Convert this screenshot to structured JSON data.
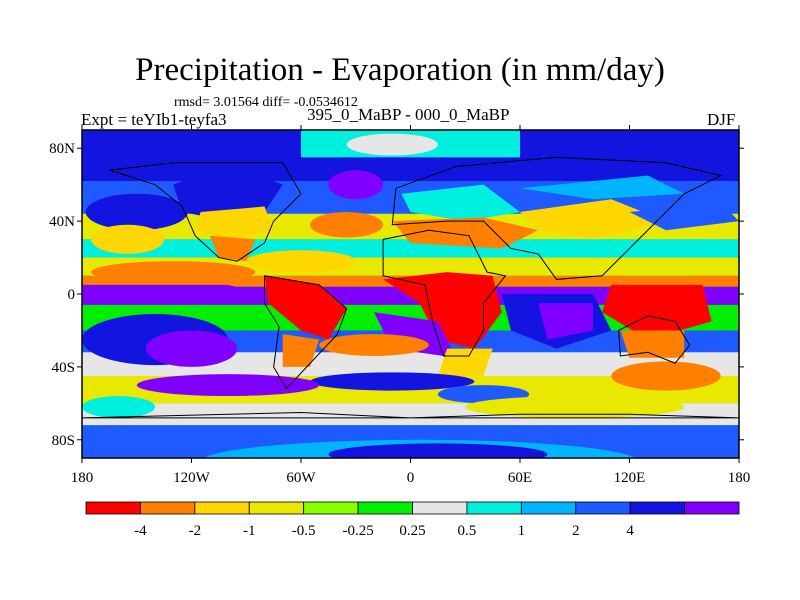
{
  "title": "Precipitation - Evaporation (in mm/day)",
  "stats": "rmsd= 3.01564 diff= -0.0534612",
  "subtitle": "395_0_MaBP - 000_0_MaBP",
  "experiment": "Expt = teYIb1-teyfa3",
  "season": "DJF",
  "chart_data": {
    "type": "heatmap",
    "title": "Precipitation - Evaporation (in mm/day)",
    "projection": "cylindrical equidistant",
    "xlim": [
      -180,
      180
    ],
    "ylim": [
      -90,
      90
    ],
    "x_ticks": [
      "180",
      "120W",
      "60W",
      "0",
      "60E",
      "120E",
      "180"
    ],
    "x_tick_values": [
      -180,
      -120,
      -60,
      0,
      60,
      120,
      180
    ],
    "y_ticks": [
      "80N",
      "40N",
      "0",
      "40S",
      "80S"
    ],
    "y_tick_values": [
      80,
      40,
      0,
      -40,
      -80
    ],
    "colorbar": {
      "levels": [
        "-4",
        "-2",
        "-1",
        "-0.5",
        "-0.25",
        "0.25",
        "0.5",
        "1",
        "2",
        "4"
      ],
      "colors": [
        "#ff0000",
        "#ff7f00",
        "#ffd700",
        "#e8e800",
        "#88ff00",
        "#00ee00",
        "#e6e6e6",
        "#00f0e0",
        "#00b4ff",
        "#1e5aff",
        "#1414e0",
        "#8000ff"
      ]
    },
    "grid": false,
    "overlay": "continent outlines"
  }
}
